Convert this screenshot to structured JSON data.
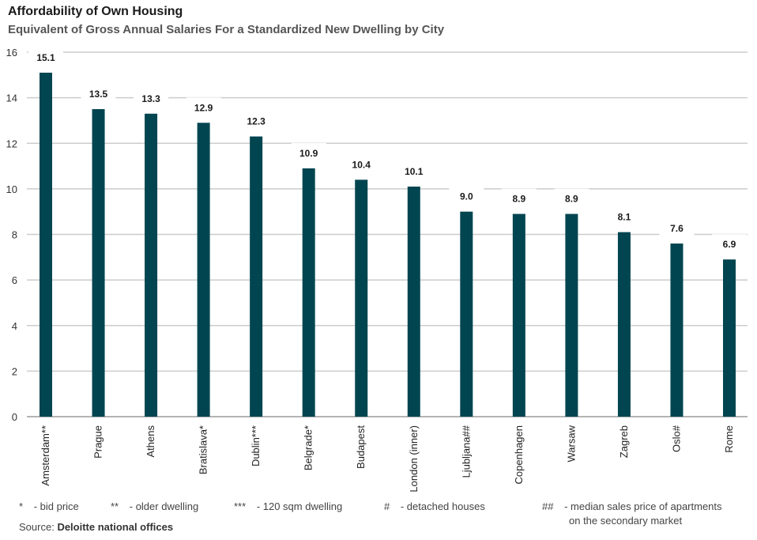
{
  "header": {
    "title": "Affordability of Own Housing",
    "subtitle": "Equivalent of Gross Annual Salaries For a Standardized New Dwelling by City"
  },
  "colors": {
    "bar": "#004550",
    "grid": "#cccccc",
    "axis": "#888888"
  },
  "chart_data": {
    "type": "bar",
    "title": "Affordability of Own Housing",
    "subtitle": "Equivalent of Gross Annual Salaries For a Standardized New Dwelling by City",
    "categories": [
      "Amsterdam**",
      "Prague",
      "Athens",
      "Bratislava*",
      "Dublin***",
      "Belgrade*",
      "Budapest",
      "London (inner)",
      "Ljubljana##",
      "Copenhagen",
      "Warsaw",
      "Zagreb",
      "Oslo#",
      "Rome"
    ],
    "values": [
      15.1,
      13.5,
      13.3,
      12.9,
      12.3,
      10.9,
      10.4,
      10.1,
      9.0,
      8.9,
      8.9,
      8.1,
      7.6,
      6.9
    ],
    "value_labels": [
      "15.1",
      "13.5",
      "13.3",
      "12.9",
      "12.3",
      "10.9",
      "10.4",
      "10.1",
      "9.0",
      "8.9",
      "8.9",
      "8.1",
      "7.6",
      "6.9"
    ],
    "yticks": [
      "0",
      "2",
      "4",
      "6",
      "8",
      "10",
      "12",
      "14",
      "16"
    ],
    "ylim": [
      0,
      16
    ],
    "grid": true,
    "xlabel": "",
    "ylabel": ""
  },
  "footnotes": [
    {
      "symbol": "*",
      "text": "- bid price"
    },
    {
      "symbol": "**",
      "text": "- older dwelling"
    },
    {
      "symbol": "***",
      "text": "- 120 sqm dwelling"
    },
    {
      "symbol": "#",
      "text": "- detached houses"
    },
    {
      "symbol": "##",
      "text_line1": "- median sales price of apartments",
      "text_line2": "on the secondary market"
    }
  ],
  "source": {
    "label": "Source:",
    "name": "Deloitte national offices"
  }
}
